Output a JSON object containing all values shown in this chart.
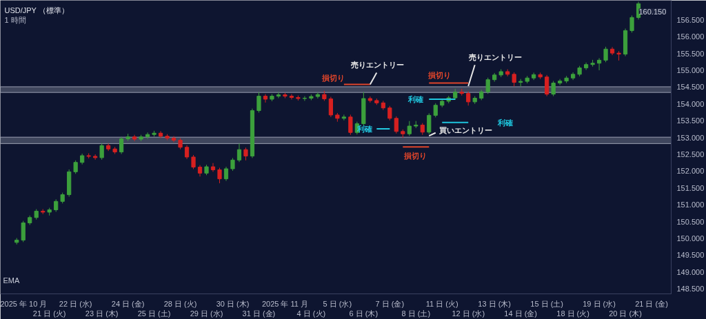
{
  "chart_data": {
    "type": "candlestick",
    "title": "USD/JPY （標準）",
    "subtitle": "1 時間",
    "categories": [
      null,
      "2025 年 10 月",
      null,
      null,
      null,
      "21 日 (火)",
      null,
      null,
      null,
      "22 日 (水)",
      null,
      null,
      null,
      "23 日 (木)",
      null,
      null,
      null,
      "24 日 (金)",
      null,
      null,
      null,
      "25 日 (土)",
      null,
      null,
      null,
      "28 日 (火)",
      null,
      null,
      null,
      "29 日 (水)",
      null,
      null,
      null,
      "30 日 (木)",
      null,
      null,
      null,
      "31 日 (金)",
      null,
      null,
      null,
      "2025 年 11 月",
      null,
      null,
      null,
      "4 日 (火)",
      null,
      null,
      null,
      "5 日 (水)",
      null,
      null,
      null,
      "6 日 (木)",
      null,
      null,
      null,
      "7 日 (金)",
      null,
      null,
      null,
      "8 日 (土)",
      null,
      null,
      null,
      "11 日 (火)",
      null,
      null,
      null,
      "12 日 (水)",
      null,
      null,
      null,
      "13 日 (木)",
      null,
      null,
      null,
      "14 日 (金)",
      null,
      null,
      null,
      "15 日 (土)",
      null,
      null,
      null,
      "18 日 (火)",
      null,
      null,
      null,
      "19 日 (水)",
      null,
      null,
      null,
      "20 日 (木)",
      null,
      null,
      null,
      "21 日 (金)"
    ],
    "ohlc": [
      [
        149.88,
        150.01,
        149.82,
        149.95
      ],
      [
        149.95,
        150.52,
        149.89,
        150.46
      ],
      [
        150.46,
        150.68,
        150.4,
        150.62
      ],
      [
        150.62,
        150.87,
        150.56,
        150.81
      ],
      [
        150.81,
        150.87,
        150.72,
        150.78
      ],
      [
        150.78,
        150.91,
        150.68,
        150.85
      ],
      [
        150.85,
        151.16,
        150.79,
        151.1
      ],
      [
        151.1,
        151.36,
        151.04,
        151.3
      ],
      [
        151.3,
        152.05,
        151.24,
        151.98
      ],
      [
        151.98,
        152.32,
        151.92,
        152.26
      ],
      [
        152.26,
        152.52,
        152.2,
        152.46
      ],
      [
        152.46,
        152.53,
        152.38,
        152.44
      ],
      [
        152.44,
        152.5,
        152.34,
        152.4
      ],
      [
        152.4,
        152.82,
        152.34,
        152.76
      ],
      [
        152.76,
        152.82,
        152.6,
        152.66
      ],
      [
        152.66,
        152.72,
        152.51,
        152.57
      ],
      [
        152.57,
        153.02,
        152.51,
        152.96
      ],
      [
        152.96,
        153.11,
        152.9,
        153.02
      ],
      [
        153.02,
        153.08,
        152.89,
        152.95
      ],
      [
        152.95,
        153.08,
        152.89,
        153.02
      ],
      [
        153.02,
        153.15,
        152.96,
        153.09
      ],
      [
        153.09,
        153.2,
        153.03,
        153.13
      ],
      [
        153.13,
        153.19,
        152.98,
        153.04
      ],
      [
        153.04,
        153.1,
        152.92,
        152.98
      ],
      [
        152.98,
        153.04,
        152.86,
        152.92
      ],
      [
        152.92,
        152.98,
        152.65,
        152.71
      ],
      [
        152.71,
        152.77,
        152.36,
        152.42
      ],
      [
        152.42,
        152.48,
        152.06,
        152.12
      ],
      [
        152.12,
        152.18,
        151.84,
        151.94
      ],
      [
        151.94,
        152.19,
        151.88,
        152.13
      ],
      [
        152.13,
        152.24,
        151.98,
        152.04
      ],
      [
        152.04,
        152.1,
        151.64,
        151.77
      ],
      [
        151.77,
        152.13,
        151.71,
        152.07
      ],
      [
        152.07,
        152.39,
        152.01,
        152.33
      ],
      [
        152.33,
        152.82,
        152.27,
        152.64
      ],
      [
        152.64,
        152.7,
        152.32,
        152.45
      ],
      [
        152.45,
        153.86,
        152.39,
        153.8
      ],
      [
        153.8,
        154.35,
        153.74,
        154.23
      ],
      [
        154.23,
        154.29,
        154.04,
        154.14
      ],
      [
        154.14,
        154.29,
        154.08,
        154.23
      ],
      [
        154.23,
        154.35,
        154.17,
        154.27
      ],
      [
        154.27,
        154.33,
        154.17,
        154.23
      ],
      [
        154.23,
        154.29,
        154.13,
        154.19
      ],
      [
        154.19,
        154.25,
        154.1,
        154.16
      ],
      [
        154.16,
        154.23,
        154.09,
        154.17
      ],
      [
        154.17,
        154.28,
        154.11,
        154.22
      ],
      [
        154.22,
        154.34,
        154.16,
        154.28
      ],
      [
        154.28,
        154.39,
        154.09,
        154.15
      ],
      [
        154.15,
        154.21,
        153.61,
        153.67
      ],
      [
        153.67,
        153.73,
        153.47,
        153.57
      ],
      [
        153.57,
        153.68,
        153.51,
        153.61
      ],
      [
        153.61,
        153.68,
        153.08,
        153.15
      ],
      [
        153.15,
        153.47,
        153.09,
        153.41
      ],
      [
        153.41,
        154.35,
        153.35,
        154.16
      ],
      [
        154.16,
        154.22,
        154.04,
        154.1
      ],
      [
        154.1,
        154.16,
        153.97,
        154.03
      ],
      [
        154.03,
        154.09,
        153.82,
        153.88
      ],
      [
        153.88,
        153.94,
        153.51,
        153.57
      ],
      [
        153.57,
        153.63,
        153.12,
        153.18
      ],
      [
        153.18,
        153.24,
        152.99,
        153.11
      ],
      [
        153.11,
        153.49,
        153.05,
        153.34
      ],
      [
        153.34,
        153.49,
        153.28,
        153.37
      ],
      [
        153.37,
        153.43,
        153.08,
        153.16
      ],
      [
        153.16,
        153.72,
        153.1,
        153.66
      ],
      [
        153.66,
        154.02,
        153.6,
        153.96
      ],
      [
        153.96,
        154.14,
        153.9,
        154.08
      ],
      [
        154.08,
        154.24,
        154.02,
        154.18
      ],
      [
        154.18,
        154.45,
        154.12,
        154.35
      ],
      [
        154.35,
        154.45,
        154.25,
        154.31
      ],
      [
        154.31,
        154.37,
        153.95,
        154.06
      ],
      [
        154.06,
        154.23,
        154.0,
        154.17
      ],
      [
        154.17,
        154.42,
        154.11,
        154.36
      ],
      [
        154.36,
        154.78,
        154.3,
        154.72
      ],
      [
        154.72,
        154.92,
        154.66,
        154.86
      ],
      [
        154.86,
        155.03,
        154.8,
        154.96
      ],
      [
        154.96,
        155.03,
        154.82,
        154.88
      ],
      [
        154.88,
        154.94,
        154.52,
        154.64
      ],
      [
        154.64,
        154.74,
        154.52,
        154.67
      ],
      [
        154.67,
        154.83,
        154.61,
        154.77
      ],
      [
        154.77,
        154.93,
        154.71,
        154.87
      ],
      [
        154.87,
        154.93,
        154.74,
        154.8
      ],
      [
        154.8,
        154.86,
        154.23,
        154.29
      ],
      [
        154.29,
        154.68,
        154.23,
        154.62
      ],
      [
        154.62,
        154.74,
        154.56,
        154.68
      ],
      [
        154.68,
        154.83,
        154.62,
        154.77
      ],
      [
        154.77,
        154.94,
        154.71,
        154.88
      ],
      [
        154.88,
        155.13,
        154.82,
        155.07
      ],
      [
        155.07,
        155.23,
        155.01,
        155.17
      ],
      [
        155.17,
        155.31,
        155.11,
        155.21
      ],
      [
        155.21,
        155.36,
        155.0,
        155.3
      ],
      [
        155.3,
        155.7,
        155.24,
        155.63
      ],
      [
        155.63,
        155.69,
        155.45,
        155.51
      ],
      [
        155.51,
        155.57,
        155.29,
        155.48
      ],
      [
        155.48,
        156.24,
        155.42,
        156.18
      ],
      [
        156.18,
        156.63,
        156.12,
        156.57
      ],
      [
        156.57,
        157.04,
        156.51,
        156.98
      ],
      null,
      null
    ],
    "series": [
      {
        "type": "line",
        "color": "#e0452a",
        "values": [
          null,
          null,
          null,
          null,
          null,
          null,
          null,
          null,
          null,
          null,
          null,
          null,
          null,
          null,
          null,
          null,
          null,
          null,
          null,
          null,
          null,
          null,
          null,
          null,
          null,
          null,
          null,
          null,
          null,
          null,
          null,
          null,
          null,
          null,
          null,
          null,
          null,
          null,
          null,
          null,
          null,
          null,
          null,
          null,
          null,
          null,
          null,
          null,
          null,
          null,
          154.58,
          154.58,
          154.58,
          154.58,
          154.58,
          null,
          null,
          null,
          null,
          null,
          null,
          null,
          null,
          null,
          null,
          null,
          null,
          null,
          null,
          null,
          null,
          null,
          null,
          null,
          null,
          null,
          null,
          null,
          null,
          null,
          null,
          null,
          null,
          null,
          null,
          null,
          null,
          null,
          null,
          null,
          null,
          null,
          null,
          null,
          null,
          null,
          null,
          null
        ]
      },
      {
        "type": "line",
        "color": "#e0452a",
        "values": [
          null,
          null,
          null,
          null,
          null,
          null,
          null,
          null,
          null,
          null,
          null,
          null,
          null,
          null,
          null,
          null,
          null,
          null,
          null,
          null,
          null,
          null,
          null,
          null,
          null,
          null,
          null,
          null,
          null,
          null,
          null,
          null,
          null,
          null,
          null,
          null,
          null,
          null,
          null,
          null,
          null,
          null,
          null,
          null,
          null,
          null,
          null,
          null,
          null,
          null,
          null,
          null,
          null,
          null,
          null,
          null,
          null,
          null,
          null,
          null,
          null,
          null,
          null,
          154.62,
          154.62,
          154.62,
          154.62,
          154.62,
          154.62,
          154.62,
          null,
          null,
          null,
          null,
          null,
          null,
          null,
          null,
          null,
          null,
          null,
          null,
          null,
          null,
          null,
          null,
          null,
          null,
          null,
          null,
          null,
          null,
          null,
          null,
          null,
          null,
          null,
          null
        ]
      },
      {
        "type": "line",
        "color": "#e0452a",
        "values": [
          null,
          null,
          null,
          null,
          null,
          null,
          null,
          null,
          null,
          null,
          null,
          null,
          null,
          null,
          null,
          null,
          null,
          null,
          null,
          null,
          null,
          null,
          null,
          null,
          null,
          null,
          null,
          null,
          null,
          null,
          null,
          null,
          null,
          null,
          null,
          null,
          null,
          null,
          null,
          null,
          null,
          null,
          null,
          null,
          null,
          null,
          null,
          null,
          null,
          null,
          null,
          null,
          null,
          null,
          null,
          null,
          null,
          null,
          null,
          152.72,
          152.72,
          152.72,
          152.72,
          152.72,
          null,
          null,
          null,
          null,
          null,
          null,
          null,
          null,
          null,
          null,
          null,
          null,
          null,
          null,
          null,
          null,
          null,
          null,
          null,
          null,
          null,
          null,
          null,
          null,
          null,
          null,
          null,
          null,
          null,
          null,
          null,
          null,
          null,
          null
        ]
      },
      {
        "type": "line",
        "color": "#20c8e0",
        "values": [
          null,
          null,
          null,
          null,
          null,
          null,
          null,
          null,
          null,
          null,
          null,
          null,
          null,
          null,
          null,
          null,
          null,
          null,
          null,
          null,
          null,
          null,
          null,
          null,
          null,
          null,
          null,
          null,
          null,
          null,
          null,
          null,
          null,
          null,
          null,
          null,
          null,
          null,
          null,
          null,
          null,
          null,
          null,
          null,
          null,
          null,
          null,
          null,
          null,
          null,
          null,
          null,
          null,
          null,
          null,
          null,
          null,
          null,
          null,
          null,
          null,
          null,
          null,
          154.14,
          154.14,
          154.14,
          154.14,
          154.14,
          null,
          null,
          null,
          null,
          null,
          null,
          null,
          null,
          null,
          null,
          null,
          null,
          null,
          null,
          null,
          null,
          null,
          null,
          null,
          null,
          null,
          null,
          null,
          null,
          null,
          null,
          null,
          null,
          null,
          null
        ]
      },
      {
        "type": "line",
        "color": "#22cae2",
        "values": [
          null,
          null,
          null,
          null,
          null,
          null,
          null,
          null,
          null,
          null,
          null,
          null,
          null,
          null,
          null,
          null,
          null,
          null,
          null,
          null,
          null,
          null,
          null,
          null,
          null,
          null,
          null,
          null,
          null,
          null,
          null,
          null,
          null,
          null,
          null,
          null,
          null,
          null,
          null,
          null,
          null,
          null,
          null,
          null,
          null,
          null,
          null,
          null,
          null,
          null,
          null,
          null,
          null,
          null,
          null,
          153.26,
          153.26,
          153.26,
          null,
          null,
          null,
          null,
          null,
          null,
          null,
          null,
          null,
          null,
          null,
          null,
          null,
          null,
          null,
          null,
          null,
          null,
          null,
          null,
          null,
          null,
          null,
          null,
          null,
          null,
          null,
          null,
          null,
          null,
          null,
          null,
          null,
          null,
          null,
          null,
          null,
          null,
          null,
          null
        ]
      },
      {
        "type": "line",
        "color": "#1ec6de",
        "values": [
          null,
          null,
          null,
          null,
          null,
          null,
          null,
          null,
          null,
          null,
          null,
          null,
          null,
          null,
          null,
          null,
          null,
          null,
          null,
          null,
          null,
          null,
          null,
          null,
          null,
          null,
          null,
          null,
          null,
          null,
          null,
          null,
          null,
          null,
          null,
          null,
          null,
          null,
          null,
          null,
          null,
          null,
          null,
          null,
          null,
          null,
          null,
          null,
          null,
          null,
          null,
          null,
          null,
          null,
          null,
          null,
          null,
          null,
          null,
          null,
          null,
          null,
          null,
          null,
          null,
          153.45,
          153.45,
          153.45,
          153.45,
          153.45,
          null,
          null,
          null,
          null,
          null,
          null,
          null,
          null,
          null,
          null,
          null,
          null,
          null,
          null,
          null,
          null,
          null,
          null,
          null,
          null,
          null,
          null,
          null,
          null,
          null,
          null,
          null,
          null
        ]
      },
      {
        "type": "line",
        "color": "#e6e6e6",
        "values": [
          null,
          null,
          null,
          null,
          null,
          null,
          null,
          null,
          null,
          null,
          null,
          null,
          null,
          null,
          null,
          null,
          null,
          null,
          null,
          null,
          null,
          null,
          null,
          null,
          null,
          null,
          null,
          null,
          null,
          null,
          null,
          null,
          null,
          null,
          null,
          null,
          null,
          null,
          null,
          null,
          null,
          null,
          null,
          null,
          null,
          null,
          null,
          null,
          null,
          null,
          null,
          null,
          null,
          null,
          154.58,
          154.93,
          null,
          null,
          null,
          null,
          null,
          null,
          null,
          null,
          null,
          null,
          null,
          null,
          null,
          null,
          null,
          null,
          null,
          null,
          null,
          null,
          null,
          null,
          null,
          null,
          null,
          null,
          null,
          null,
          null,
          null,
          null,
          null,
          null,
          null,
          null,
          null,
          null,
          null,
          null,
          null,
          null,
          null
        ]
      },
      {
        "type": "line",
        "color": "#e6e6e6",
        "values": [
          null,
          null,
          null,
          null,
          null,
          null,
          null,
          null,
          null,
          null,
          null,
          null,
          null,
          null,
          null,
          null,
          null,
          null,
          null,
          null,
          null,
          null,
          null,
          null,
          null,
          null,
          null,
          null,
          null,
          null,
          null,
          null,
          null,
          null,
          null,
          null,
          null,
          null,
          null,
          null,
          null,
          null,
          null,
          null,
          null,
          null,
          null,
          null,
          null,
          null,
          null,
          null,
          null,
          null,
          null,
          null,
          null,
          null,
          null,
          null,
          null,
          null,
          null,
          null,
          null,
          null,
          null,
          null,
          null,
          154.53,
          155.16,
          null,
          null,
          null,
          null,
          null,
          null,
          null,
          null,
          null,
          null,
          null,
          null,
          null,
          null,
          null,
          null,
          null,
          null,
          null,
          null,
          null,
          null,
          null,
          null,
          null,
          null,
          null
        ]
      },
      {
        "type": "line",
        "color": "#e6e6e6",
        "values": [
          null,
          null,
          null,
          null,
          null,
          null,
          null,
          null,
          null,
          null,
          null,
          null,
          null,
          null,
          null,
          null,
          null,
          null,
          null,
          null,
          null,
          null,
          null,
          null,
          null,
          null,
          null,
          null,
          null,
          null,
          null,
          null,
          null,
          null,
          null,
          null,
          null,
          null,
          null,
          null,
          null,
          null,
          null,
          null,
          null,
          null,
          null,
          null,
          null,
          null,
          null,
          null,
          null,
          null,
          null,
          null,
          null,
          null,
          null,
          null,
          null,
          null,
          null,
          153.05,
          153.14,
          null,
          null,
          null,
          null,
          null,
          null,
          null,
          null,
          null,
          null,
          null,
          null,
          null,
          null,
          null,
          null,
          null,
          null,
          null,
          null,
          null,
          null,
          null,
          null,
          null,
          null,
          null,
          null,
          null,
          null,
          null,
          null,
          null
        ]
      }
    ],
    "bands": [
      {
        "axis": "y",
        "from": 154.34,
        "to": 154.51,
        "color": "#b4b8c8"
      },
      {
        "axis": "y",
        "from": 152.82,
        "to": 153.01,
        "color": "#b4b8c8"
      }
    ],
    "annotations": [
      "損切り",
      "損切り",
      "損切り",
      "利確",
      "利確",
      "利確",
      "売りエントリー",
      "売りエントリー",
      "買いエントリー",
      "160.150",
      "EMA"
    ],
    "ylim": [
      148.35,
      157.08
    ],
    "yticks": [
      {
        "value": 148.5,
        "label": "148.500"
      },
      {
        "value": 149,
        "label": "149.000"
      },
      {
        "value": 149.5,
        "label": "149.500"
      },
      {
        "value": 150,
        "label": "150.000"
      },
      {
        "value": 150.5,
        "label": "150.500"
      },
      {
        "value": 151,
        "label": "151.000"
      },
      {
        "value": 151.5,
        "label": "151.500"
      },
      {
        "value": 152,
        "label": "152.000"
      },
      {
        "value": 152.5,
        "label": "152.500"
      },
      {
        "value": 153,
        "label": "153.000"
      },
      {
        "value": 153.5,
        "label": "153.500"
      },
      {
        "value": 154,
        "label": "154.000"
      },
      {
        "value": 154.5,
        "label": "154.500"
      },
      {
        "value": 155,
        "label": "155.000"
      },
      {
        "value": 155.5,
        "label": "155.500"
      },
      {
        "value": 156,
        "label": "156.000"
      },
      {
        "value": 156.5,
        "label": "156.500"
      }
    ],
    "grid": false
  }
}
